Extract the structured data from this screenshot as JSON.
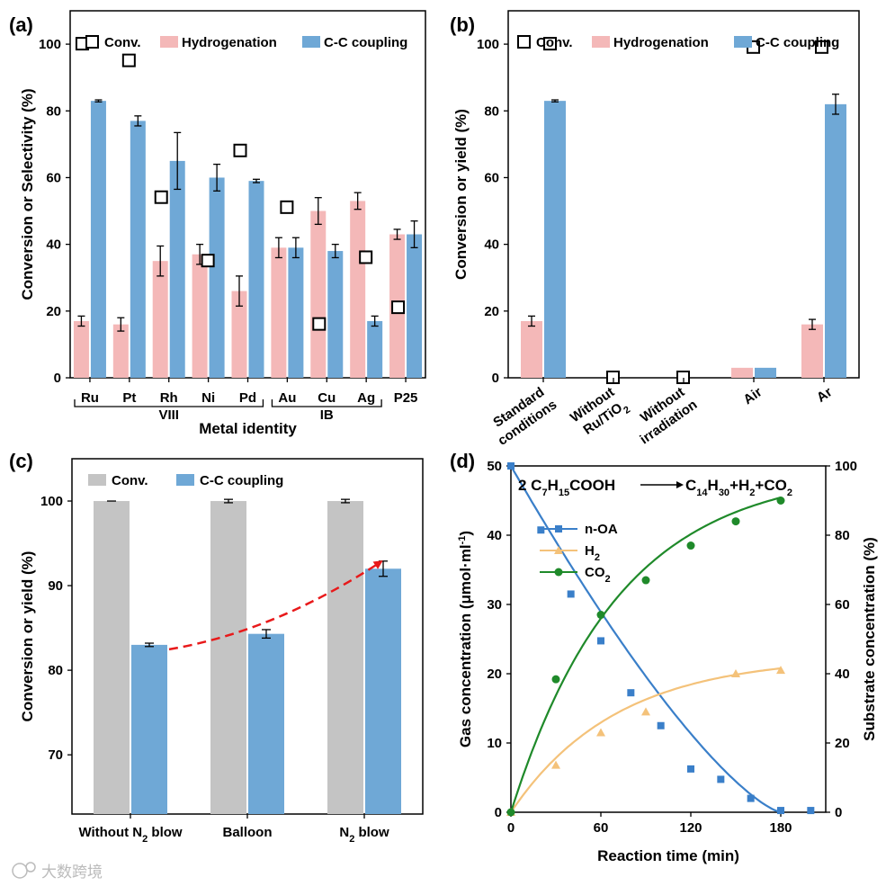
{
  "chart_data": [
    {
      "panel": "(a)",
      "type": "bar",
      "categories": [
        "Ru",
        "Pt",
        "Rh",
        "Ni",
        "Pd",
        "Au",
        "Cu",
        "Ag",
        "P25"
      ],
      "groups": [
        {
          "label": "VIII",
          "from": 0,
          "to": 4
        },
        {
          "label": "IB",
          "from": 5,
          "to": 7
        }
      ],
      "xlabel": "Metal identity",
      "ylabel": "Conversion or Selectivity (%)",
      "ylim": [
        0,
        110
      ],
      "yticks": [
        0,
        20,
        40,
        60,
        80,
        100
      ],
      "legend_position": "top",
      "series": [
        {
          "name": "Conv.",
          "kind": "marker",
          "color": "#000000",
          "values": [
            100,
            95,
            54,
            35,
            68,
            51,
            16,
            36,
            21
          ]
        },
        {
          "name": "Hydrogenation",
          "kind": "bar",
          "color": "#f4b8b8",
          "values": [
            17,
            16,
            35,
            37,
            26,
            39,
            50,
            53,
            43
          ],
          "errors": [
            1.5,
            2,
            4.5,
            3,
            4.5,
            3,
            4,
            2.5,
            1.5
          ]
        },
        {
          "name": "C-C coupling",
          "kind": "bar",
          "color": "#6fa8d6",
          "values": [
            83,
            77,
            65,
            60,
            59,
            39,
            38,
            17,
            43
          ],
          "errors": [
            0.3,
            1.5,
            8.5,
            4,
            0.5,
            3,
            2,
            1.5,
            4
          ]
        }
      ]
    },
    {
      "panel": "(b)",
      "type": "bar",
      "categories": [
        [
          "Standard",
          "conditions"
        ],
        [
          "Without",
          "Ru/TiO",
          "2"
        ],
        [
          "Without",
          "irradiation"
        ],
        [
          "Air"
        ],
        [
          "Ar"
        ]
      ],
      "ylabel": "Conversion or yield (%)",
      "ylim": [
        0,
        110
      ],
      "yticks": [
        0,
        20,
        40,
        60,
        80,
        100
      ],
      "legend_position": "top",
      "series": [
        {
          "name": "Conv.",
          "kind": "marker",
          "color": "#000000",
          "values": [
            100,
            0,
            0,
            99,
            99
          ]
        },
        {
          "name": "Hydrogenation",
          "kind": "bar",
          "color": "#f4b8b8",
          "values": [
            17,
            0,
            0,
            3,
            16
          ],
          "errors": [
            1.5,
            0,
            0,
            0,
            1.5
          ]
        },
        {
          "name": "C-C coupling",
          "kind": "bar",
          "color": "#6fa8d6",
          "values": [
            83,
            0,
            0,
            3,
            82
          ],
          "errors": [
            0.3,
            0,
            0,
            0,
            3
          ]
        }
      ]
    },
    {
      "panel": "(c)",
      "type": "bar",
      "categories": [
        [
          "Without N",
          "2",
          " blow"
        ],
        [
          "Balloon"
        ],
        [
          "N",
          "2",
          " blow"
        ]
      ],
      "ylabel": "Conversion or yield (%)",
      "ylim": [
        63,
        105
      ],
      "yticks": [
        70,
        80,
        90,
        100
      ],
      "legend_position": "top-left",
      "series": [
        {
          "name": "Conv.",
          "kind": "bar",
          "color": "#c4c4c4",
          "values": [
            100,
            100,
            100
          ],
          "errors": [
            0,
            0.2,
            0.2
          ]
        },
        {
          "name": "C-C coupling",
          "kind": "bar",
          "color": "#6fa8d6",
          "values": [
            83,
            84.3,
            92
          ],
          "errors": [
            0.2,
            0.5,
            0.9
          ]
        }
      ],
      "annotation": "dashed red trend arrow"
    },
    {
      "panel": "(d)",
      "type": "line",
      "xlabel": "Reaction time (min)",
      "ylabel_left": [
        "Gas concentration (μmol·ml",
        "-1",
        ")"
      ],
      "ylabel_right": "Substrate  concentration (%)",
      "xlim": [
        0,
        210
      ],
      "xticks": [
        0,
        60,
        120,
        180
      ],
      "ylim_left": [
        0,
        50
      ],
      "yticks_left": [
        0,
        10,
        20,
        30,
        40,
        50
      ],
      "ylim_right": [
        0,
        100
      ],
      "yticks_right": [
        0,
        20,
        40,
        60,
        80,
        100
      ],
      "equation": {
        "left": [
          [
            "2 C",
            ""
          ],
          [
            "7",
            "sub"
          ],
          [
            "H",
            ""
          ],
          [
            "15",
            "sub"
          ],
          [
            "COOH",
            ""
          ]
        ],
        "right": [
          [
            "C",
            ""
          ],
          [
            "14",
            "sub"
          ],
          [
            "H",
            ""
          ],
          [
            "30",
            "sub"
          ],
          [
            "+H",
            ""
          ],
          [
            "2",
            "sub"
          ],
          [
            "+CO",
            ""
          ],
          [
            "2",
            "sub"
          ]
        ]
      },
      "series": [
        {
          "name": "n-OA",
          "legend": [
            [
              "n-OA",
              ""
            ]
          ],
          "axis": "right",
          "marker": "square",
          "color": "#3a7fc9",
          "x": [
            0,
            20,
            40,
            60,
            80,
            100,
            120,
            140,
            160,
            180,
            200
          ],
          "y": [
            100,
            81.5,
            63,
            49.5,
            34.5,
            25,
            12.5,
            9.5,
            4,
            0.5,
            0.5
          ]
        },
        {
          "name": "H2",
          "legend": [
            [
              "H",
              ""
            ],
            [
              "2",
              "sub"
            ]
          ],
          "axis": "left",
          "marker": "triangle",
          "color": "#f4c27a",
          "x": [
            0,
            30,
            60,
            90,
            150,
            180
          ],
          "y": [
            0,
            6.8,
            11.5,
            14.5,
            20.0,
            20.5
          ]
        },
        {
          "name": "CO2",
          "legend": [
            [
              "CO",
              ""
            ],
            [
              "2",
              "sub"
            ]
          ],
          "axis": "left",
          "marker": "circle",
          "color": "#1f8a2a",
          "x": [
            0,
            30,
            60,
            90,
            120,
            150,
            180
          ],
          "y": [
            0,
            19.2,
            28.5,
            33.5,
            38.5,
            42.0,
            45.0
          ]
        }
      ]
    }
  ],
  "watermark": "大数跨境"
}
